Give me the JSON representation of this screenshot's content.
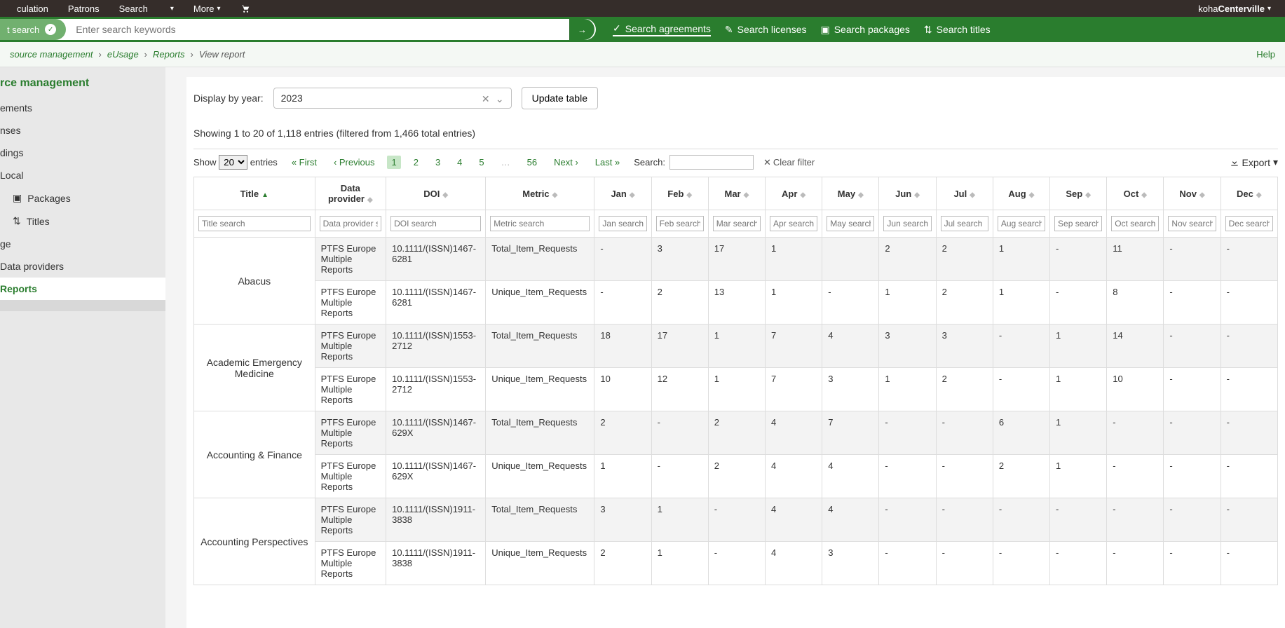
{
  "topnav": {
    "left": [
      "culation",
      "Patrons",
      "Search",
      "",
      "More"
    ],
    "right_prefix": "koha ",
    "right_bold": "Centerville"
  },
  "searchbar": {
    "pill_label": "t search",
    "placeholder": "Enter search keywords",
    "links": [
      {
        "icon": "check",
        "label": "Search agreements",
        "active": true
      },
      {
        "icon": "pencil",
        "label": "Search licenses",
        "active": false
      },
      {
        "icon": "archive",
        "label": "Search packages",
        "active": false
      },
      {
        "icon": "sort",
        "label": "Search titles",
        "active": false
      }
    ]
  },
  "breadcrumb": {
    "items": [
      "source management",
      "eUsage",
      "Reports",
      "View report"
    ],
    "help": "Help"
  },
  "sidebar": {
    "heading": "rce management",
    "items": [
      {
        "label": "ements"
      },
      {
        "label": "nses"
      },
      {
        "label": "dings"
      },
      {
        "label": "Local"
      },
      {
        "label": "Packages",
        "icon": "box",
        "indent": true
      },
      {
        "label": "Titles",
        "icon": "sort",
        "indent": true
      },
      {
        "label": "ge"
      },
      {
        "label": "Data providers"
      },
      {
        "label": "Reports",
        "active": true
      },
      {
        "label": "",
        "highlight": true
      }
    ]
  },
  "controls": {
    "label": "Display by year:",
    "year": "2023",
    "update": "Update table"
  },
  "table": {
    "info": "Showing 1 to 20 of 1,118 entries (filtered from 1,466 total entries)",
    "show_label_pre": "Show",
    "show_value": "20",
    "show_label_post": "entries",
    "pager": {
      "first": "First",
      "prev": "Previous",
      "pages": [
        "1",
        "2",
        "3",
        "4",
        "5",
        "…",
        "56"
      ],
      "next": "Next",
      "last": "Last"
    },
    "search_label": "Search:",
    "clear_filter": "Clear filter",
    "export": "Export",
    "columns": [
      "Title",
      "Data provider",
      "DOI",
      "Metric",
      "Jan",
      "Feb",
      "Mar",
      "Apr",
      "May",
      "Jun",
      "Jul",
      "Aug",
      "Sep",
      "Oct",
      "Nov",
      "Dec"
    ],
    "filters": [
      "Title search",
      "Data provider search",
      "DOI search",
      "Metric search",
      "Jan search",
      "Feb search",
      "Mar search",
      "Apr search",
      "May search",
      "Jun search",
      "Jul search",
      "Aug search",
      "Sep search",
      "Oct search",
      "Nov search",
      "Dec search"
    ],
    "groups": [
      {
        "title": "Abacus",
        "rows": [
          {
            "dp": "PTFS Europe Multiple Reports",
            "doi": "10.1111/(ISSN)1467-6281",
            "metric": "Total_Item_Requests",
            "m": [
              "-",
              "3",
              "17",
              "1",
              "",
              "2",
              "2",
              "1",
              "-",
              "11",
              "-",
              "-"
            ],
            "odd": true
          },
          {
            "dp": "PTFS Europe Multiple Reports",
            "doi": "10.1111/(ISSN)1467-6281",
            "metric": "Unique_Item_Requests",
            "m": [
              "-",
              "2",
              "13",
              "1",
              "-",
              "1",
              "2",
              "1",
              "-",
              "8",
              "-",
              "-"
            ],
            "odd": false
          }
        ]
      },
      {
        "title": "Academic Emergency Medicine",
        "rows": [
          {
            "dp": "PTFS Europe Multiple Reports",
            "doi": "10.1111/(ISSN)1553-2712",
            "metric": "Total_Item_Requests",
            "m": [
              "18",
              "17",
              "1",
              "7",
              "4",
              "3",
              "3",
              "-",
              "1",
              "14",
              "-",
              "-"
            ],
            "odd": true
          },
          {
            "dp": "PTFS Europe Multiple Reports",
            "doi": "10.1111/(ISSN)1553-2712",
            "metric": "Unique_Item_Requests",
            "m": [
              "10",
              "12",
              "1",
              "7",
              "3",
              "1",
              "2",
              "-",
              "1",
              "10",
              "-",
              "-"
            ],
            "odd": false
          }
        ]
      },
      {
        "title": "Accounting & Finance",
        "rows": [
          {
            "dp": "PTFS Europe Multiple Reports",
            "doi": "10.1111/(ISSN)1467-629X",
            "metric": "Total_Item_Requests",
            "m": [
              "2",
              "-",
              "2",
              "4",
              "7",
              "-",
              "-",
              "6",
              "1",
              "-",
              "-",
              "-"
            ],
            "odd": true
          },
          {
            "dp": "PTFS Europe Multiple Reports",
            "doi": "10.1111/(ISSN)1467-629X",
            "metric": "Unique_Item_Requests",
            "m": [
              "1",
              "-",
              "2",
              "4",
              "4",
              "-",
              "-",
              "2",
              "1",
              "-",
              "-",
              "-"
            ],
            "odd": false
          }
        ]
      },
      {
        "title": "Accounting Perspectives",
        "rows": [
          {
            "dp": "PTFS Europe Multiple Reports",
            "doi": "10.1111/(ISSN)1911-3838",
            "metric": "Total_Item_Requests",
            "m": [
              "3",
              "1",
              "-",
              "4",
              "4",
              "-",
              "-",
              "-",
              "-",
              "-",
              "-",
              "-"
            ],
            "odd": true
          },
          {
            "dp": "PTFS Europe Multiple Reports",
            "doi": "10.1111/(ISSN)1911-3838",
            "metric": "Unique_Item_Requests",
            "m": [
              "2",
              "1",
              "-",
              "4",
              "3",
              "-",
              "-",
              "-",
              "-",
              "-",
              "-",
              "-"
            ],
            "odd": false
          }
        ]
      }
    ]
  }
}
